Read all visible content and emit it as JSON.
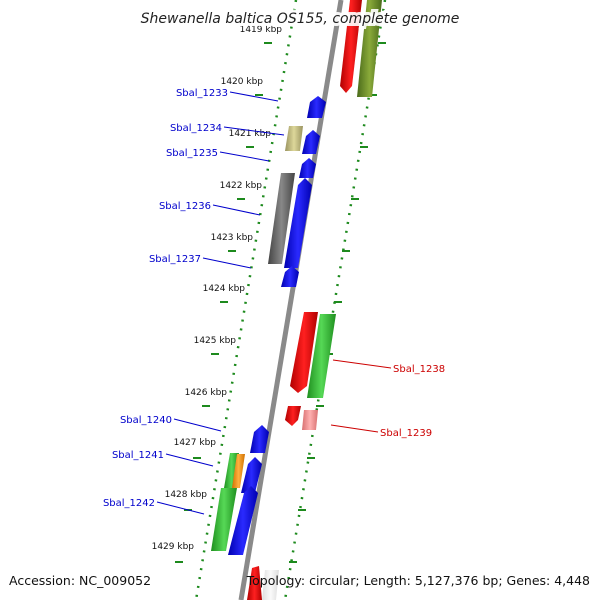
{
  "title": "Shewanella baltica OS155, complete genome",
  "footer": {
    "accession": "Accession: NC_009052",
    "topology": "Topology: circular; Length: 5,127,376 bp; Genes: 4,448"
  },
  "kbp_labels": [
    "1419 kbp",
    "1420 kbp",
    "1421 kbp",
    "1422 kbp",
    "1423 kbp",
    "1424 kbp",
    "1425 kbp",
    "1426 kbp",
    "1427 kbp",
    "1428 kbp",
    "1429 kbp"
  ],
  "genes": [
    {
      "id": "Sbal_1233",
      "strand": "forward",
      "kbp": 1420.2,
      "color": "blue"
    },
    {
      "id": "Sbal_1234",
      "strand": "forward",
      "kbp": 1420.9,
      "color": "khaki"
    },
    {
      "id": "Sbal_1235",
      "strand": "forward",
      "kbp": 1421.3,
      "color": "blue"
    },
    {
      "id": "Sbal_1236",
      "strand": "forward",
      "kbp": 1422.3,
      "color": "gray"
    },
    {
      "id": "Sbal_1237",
      "strand": "forward",
      "kbp": 1423.4,
      "color": "blue"
    },
    {
      "id": "Sbal_1238",
      "strand": "reverse",
      "kbp": 1425.6,
      "color": "green"
    },
    {
      "id": "Sbal_1239",
      "strand": "reverse",
      "kbp": 1426.4,
      "color": "pink"
    },
    {
      "id": "Sbal_1240",
      "strand": "forward",
      "kbp": 1426.9,
      "color": "blue"
    },
    {
      "id": "Sbal_1241",
      "strand": "forward",
      "kbp": 1427.4,
      "color": "green"
    },
    {
      "id": "Sbal_1242",
      "strand": "forward",
      "kbp": 1428.0,
      "color": "green"
    }
  ],
  "colors": {
    "forward_label": "#0000cc",
    "reverse_label": "#cc0000",
    "backbone": "#8a8a8a",
    "tick": "#1d8a1d"
  }
}
